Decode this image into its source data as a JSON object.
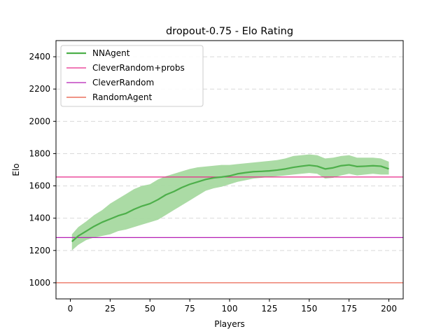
{
  "chart_data": {
    "type": "line",
    "title": "dropout-0.75 - Elo Rating",
    "xlabel": "Players",
    "ylabel": "Elo",
    "xlim": [
      -9,
      209
    ],
    "ylim": [
      900,
      2500
    ],
    "xticks": [
      0,
      25,
      50,
      75,
      100,
      125,
      150,
      175,
      200
    ],
    "yticks": [
      1000,
      1200,
      1400,
      1600,
      1800,
      2000,
      2200,
      2400
    ],
    "grid": "horizontal dashed",
    "legend_position": "top-left",
    "series": [
      {
        "name": "NNAgent",
        "kind": "mean_with_band",
        "color": "#4daf4a",
        "band_color": "#a6d9a0",
        "x": [
          1,
          5,
          10,
          15,
          20,
          25,
          30,
          35,
          40,
          45,
          50,
          55,
          60,
          65,
          70,
          75,
          80,
          85,
          90,
          95,
          100,
          105,
          110,
          115,
          120,
          125,
          130,
          135,
          140,
          145,
          150,
          155,
          160,
          165,
          170,
          175,
          180,
          185,
          190,
          195,
          200
        ],
        "mean": [
          1255,
          1290,
          1320,
          1350,
          1375,
          1395,
          1415,
          1430,
          1455,
          1475,
          1490,
          1515,
          1545,
          1565,
          1590,
          1610,
          1625,
          1640,
          1650,
          1655,
          1662,
          1675,
          1682,
          1688,
          1690,
          1693,
          1698,
          1705,
          1715,
          1722,
          1728,
          1722,
          1705,
          1712,
          1725,
          1730,
          1720,
          1722,
          1725,
          1722,
          1705
        ],
        "lower": [
          1200,
          1235,
          1265,
          1280,
          1290,
          1300,
          1320,
          1330,
          1345,
          1360,
          1375,
          1390,
          1420,
          1450,
          1480,
          1510,
          1540,
          1570,
          1585,
          1595,
          1610,
          1625,
          1635,
          1645,
          1650,
          1655,
          1660,
          1665,
          1670,
          1675,
          1680,
          1675,
          1645,
          1650,
          1665,
          1675,
          1665,
          1670,
          1675,
          1670,
          1670
        ],
        "upper": [
          1300,
          1345,
          1380,
          1420,
          1450,
          1490,
          1520,
          1550,
          1580,
          1600,
          1610,
          1640,
          1660,
          1675,
          1690,
          1705,
          1715,
          1720,
          1725,
          1730,
          1730,
          1735,
          1740,
          1745,
          1750,
          1755,
          1760,
          1770,
          1785,
          1790,
          1795,
          1790,
          1770,
          1775,
          1785,
          1790,
          1775,
          1775,
          1775,
          1770,
          1750
        ]
      },
      {
        "name": "CleverRandom+probs",
        "kind": "hline",
        "y": 1655,
        "color": "#e7298a"
      },
      {
        "name": "CleverRandom",
        "kind": "hline",
        "y": 1280,
        "color": "#b41fb4"
      },
      {
        "name": "RandomAgent",
        "kind": "hline",
        "y": 1000,
        "color": "#e8533f"
      }
    ]
  }
}
